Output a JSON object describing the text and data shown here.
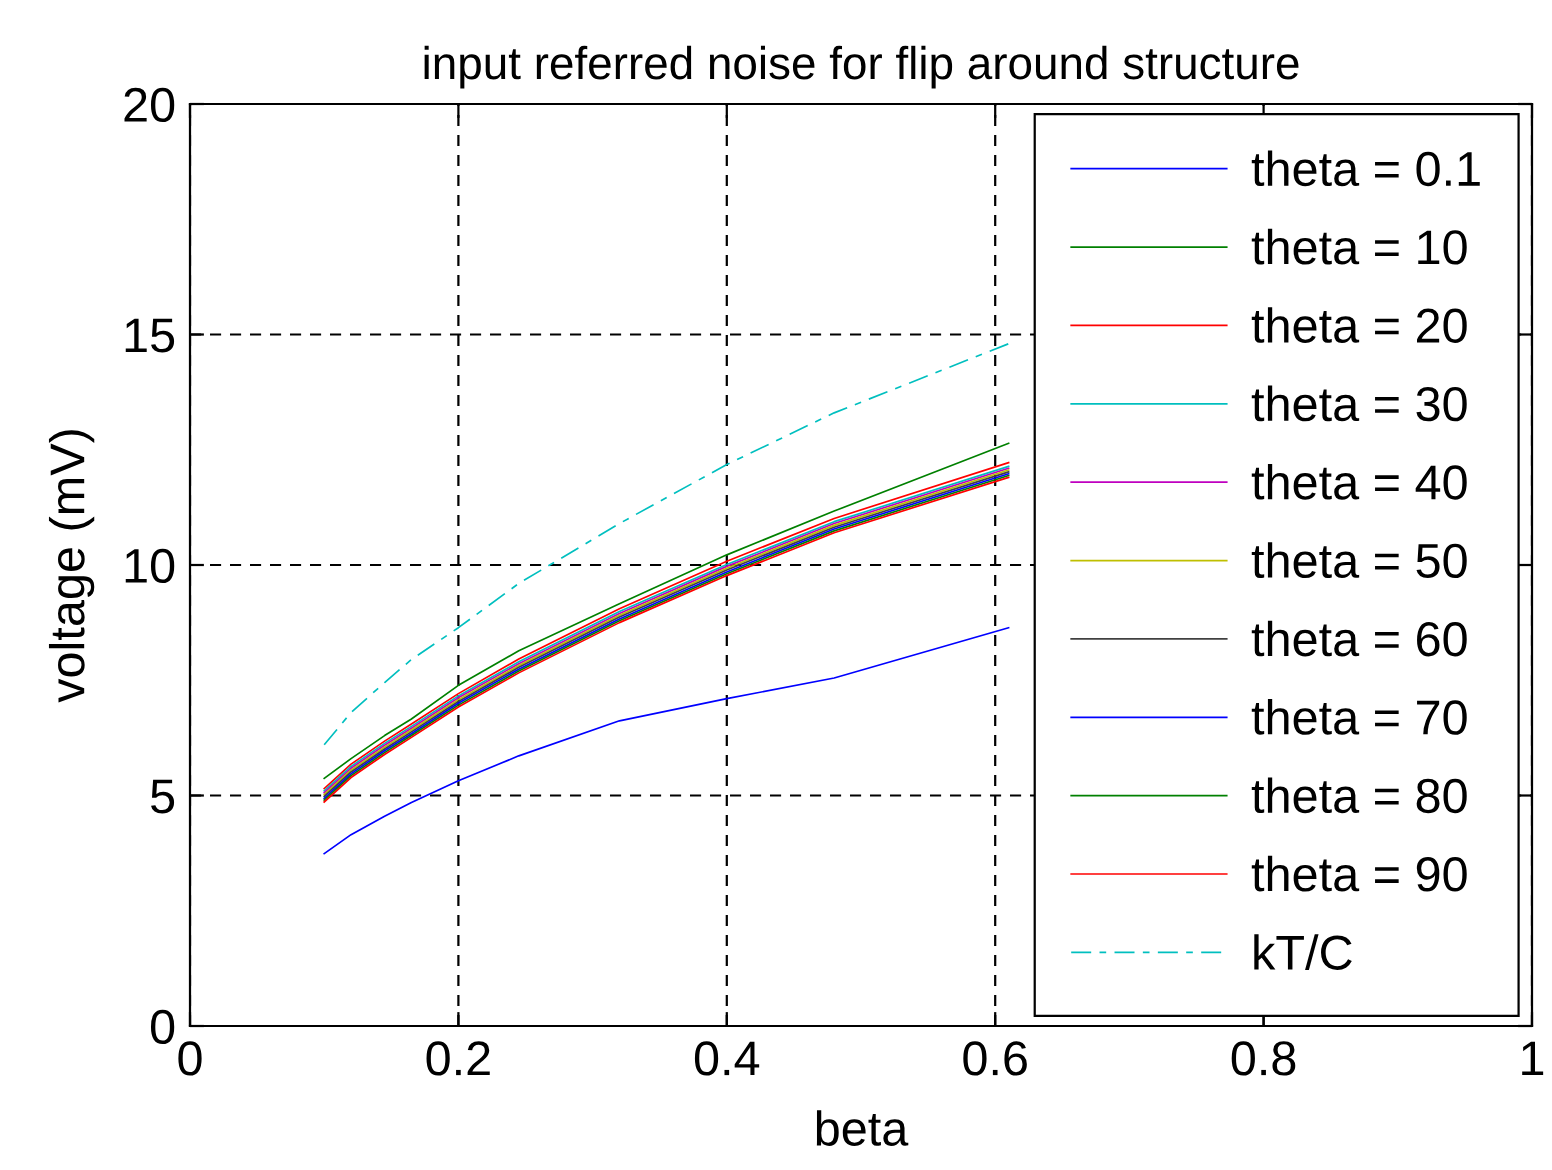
{
  "chart_data": {
    "type": "line",
    "title": "input referred noise for flip around structure",
    "xlabel": "beta",
    "ylabel": "voltage (mV)",
    "x": [
      0.1,
      0.12,
      0.145,
      0.165,
      0.2,
      0.245,
      0.32,
      0.4,
      0.48,
      0.61
    ],
    "series": [
      {
        "name": "theta = 0.1",
        "color": "#0000ff",
        "values": [
          3.74,
          4.15,
          4.55,
          4.85,
          5.32,
          5.86,
          6.62,
          7.1,
          7.55,
          8.64
        ]
      },
      {
        "name": "theta = 10",
        "color": "#008000",
        "values": [
          5.37,
          5.8,
          6.3,
          6.66,
          7.39,
          8.14,
          9.16,
          10.22,
          11.17,
          12.64
        ]
      },
      {
        "name": "theta = 20",
        "color": "#ff0000",
        "values": [
          5.15,
          5.68,
          6.18,
          6.55,
          7.21,
          7.96,
          9.05,
          10.08,
          11.01,
          12.22
        ]
      },
      {
        "name": "theta = 30",
        "color": "#00bfbf",
        "values": [
          5.1,
          5.63,
          6.13,
          6.5,
          7.16,
          7.9,
          8.99,
          10.01,
          10.94,
          12.14
        ]
      },
      {
        "name": "theta = 40",
        "color": "#bf00bf",
        "values": [
          5.06,
          5.59,
          6.09,
          6.46,
          7.12,
          7.86,
          8.95,
          9.97,
          10.9,
          12.1
        ]
      },
      {
        "name": "theta = 50",
        "color": "#bfbf00",
        "values": [
          5.02,
          5.55,
          6.05,
          6.42,
          7.08,
          7.82,
          8.91,
          9.93,
          10.86,
          12.06
        ]
      },
      {
        "name": "theta = 60",
        "color": "#404040",
        "values": [
          4.98,
          5.51,
          6.01,
          6.38,
          7.04,
          7.78,
          8.87,
          9.89,
          10.82,
          12.02
        ]
      },
      {
        "name": "theta = 70",
        "color": "#0000ff",
        "values": [
          4.94,
          5.47,
          5.97,
          6.34,
          7.0,
          7.74,
          8.83,
          9.85,
          10.78,
          11.98
        ]
      },
      {
        "name": "theta = 80",
        "color": "#008000",
        "values": [
          4.9,
          5.43,
          5.93,
          6.3,
          6.96,
          7.7,
          8.79,
          9.81,
          10.74,
          11.94
        ]
      },
      {
        "name": "theta = 90",
        "color": "#ff0000",
        "values": [
          4.86,
          5.39,
          5.89,
          6.26,
          6.92,
          7.66,
          8.75,
          9.77,
          10.7,
          11.9
        ]
      },
      {
        "name": "kT/C",
        "color": "#00bfbf",
        "line_style": "dashdot",
        "values": [
          6.1,
          6.8,
          7.45,
          7.95,
          8.64,
          9.6,
          10.9,
          12.18,
          13.3,
          14.8
        ]
      }
    ],
    "xlim": [
      0,
      1
    ],
    "ylim": [
      0,
      20
    ],
    "xticks": [
      0,
      0.2,
      0.4,
      0.6,
      0.8,
      1
    ],
    "yticks": [
      0,
      5,
      10,
      15,
      20
    ],
    "grid": true,
    "legend": "right",
    "line_style": "solid"
  }
}
